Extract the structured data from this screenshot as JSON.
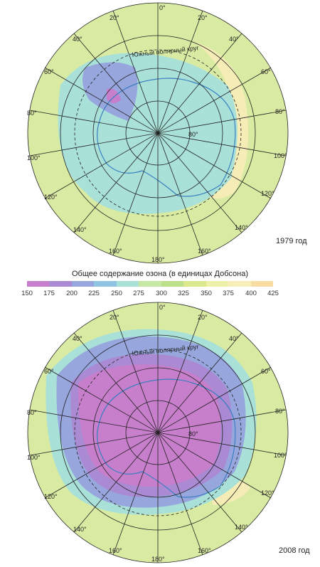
{
  "maps": [
    {
      "id": "map-1979",
      "year_label": "1979 год"
    },
    {
      "id": "map-2008",
      "year_label": "2008 год"
    }
  ],
  "legend": {
    "title": "Общее содержание озона (в единицах Добсона)",
    "ticks": [
      "150",
      "175",
      "200",
      "225",
      "250",
      "275",
      "300",
      "325",
      "350",
      "375",
      "400",
      "425"
    ],
    "colors": [
      "#c77ecb",
      "#a98ad3",
      "#98a6de",
      "#8fc5e3",
      "#a9e1d8",
      "#c7e8a4",
      "#bfe08a",
      "#dbe88c",
      "#eef0a8",
      "#f8eeb8",
      "#f7dca3"
    ]
  },
  "map_labels": {
    "meridians": [
      "0°",
      "20°",
      "40°",
      "60°",
      "80°",
      "100°",
      "120°",
      "140°",
      "160°",
      "180°",
      "160°",
      "140°",
      "120°",
      "100°",
      "80°",
      "60°",
      "40°",
      "20°"
    ],
    "circle_label": "Южный полярный круг",
    "lat_label": "80°"
  },
  "map_colors": {
    "outside": "#d9eba3",
    "yellow_band": "#f6ecb5",
    "level_blue": "#98a6de",
    "level_teal": "#a9e1d8",
    "level_violet": "#a98ad3",
    "level_pink": "#c77ecb",
    "grid": "#222222",
    "coast": "#3a7fc0"
  }
}
